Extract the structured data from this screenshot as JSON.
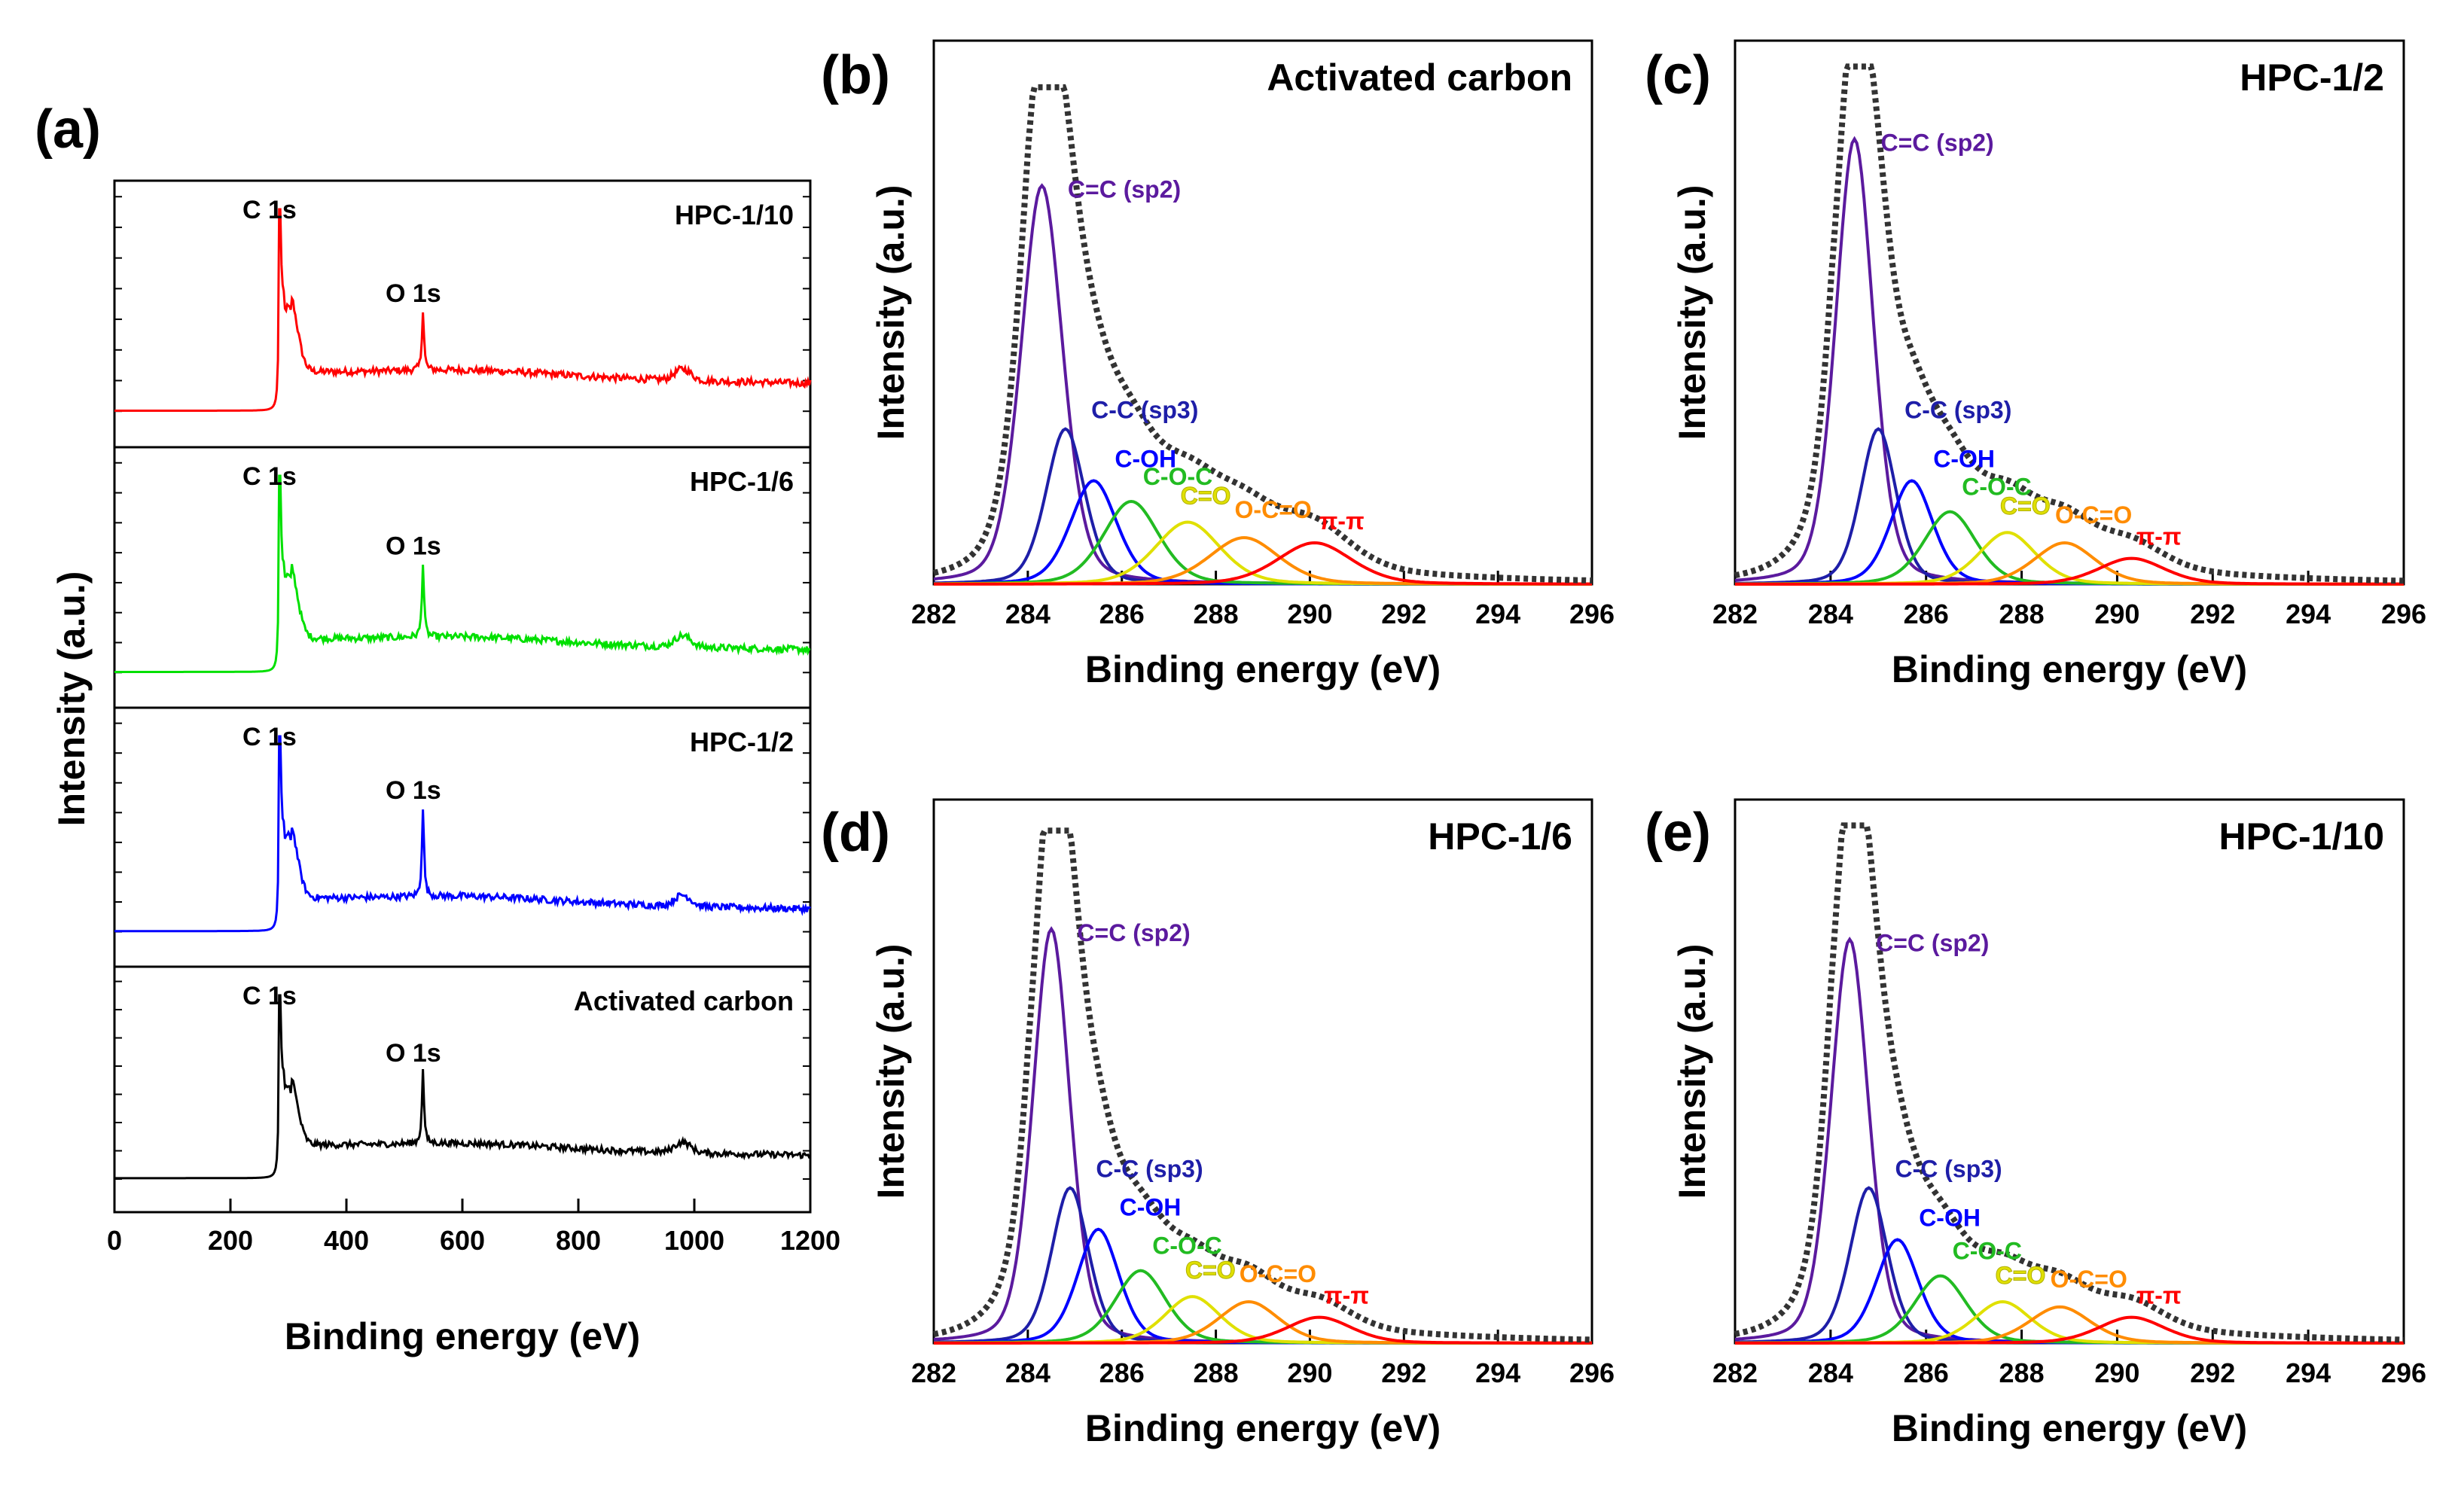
{
  "figure": {
    "panel_labels": [
      "(a)",
      "(b)",
      "(c)",
      "(d)",
      "(e)"
    ]
  },
  "chart_data": [
    {
      "panel": "(a)",
      "type": "line",
      "xlabel": "Binding energy (eV)",
      "ylabel": "Intensity (a.u.)",
      "xlim": [
        0,
        1200
      ],
      "x_ticks": [
        "0",
        "200",
        "400",
        "600",
        "800",
        "1000",
        "1200"
      ],
      "peak_labels": {
        "c1s": "C 1s",
        "o1s": "O 1s"
      },
      "series": [
        {
          "name": "HPC-1/10",
          "color": "#ff0000",
          "c1s_peak": 285,
          "o1s_peak": 532,
          "c1s_height": 1.0,
          "o1s_height": 0.26,
          "baseline": 0.12,
          "plateau": 0.29
        },
        {
          "name": "HPC-1/6",
          "color": "#00e000",
          "c1s_peak": 285,
          "o1s_peak": 532,
          "c1s_height": 1.0,
          "o1s_height": 0.33,
          "baseline": 0.12,
          "plateau": 0.27
        },
        {
          "name": "HPC-1/2",
          "color": "#0000ff",
          "c1s_peak": 285,
          "o1s_peak": 532,
          "c1s_height": 1.0,
          "o1s_height": 0.4,
          "baseline": 0.12,
          "plateau": 0.27
        },
        {
          "name": "Activated carbon",
          "color": "#000000",
          "c1s_peak": 285,
          "o1s_peak": 532,
          "c1s_height": 1.0,
          "o1s_height": 0.35,
          "baseline": 0.12,
          "plateau": 0.28
        }
      ]
    },
    {
      "panel": "(b)",
      "title": "Activated carbon",
      "type": "line",
      "xlabel": "Binding energy (eV)",
      "ylabel": "Intensity (a.u.)",
      "xlim": [
        282,
        296
      ],
      "ylim": [
        0,
        1.05
      ],
      "x_ticks": [
        "282",
        "284",
        "286",
        "288",
        "290",
        "292",
        "294",
        "296"
      ],
      "envelope_peak": 284.5,
      "envelope_height": 0.96,
      "components": [
        {
          "name": "C=C (sp2)",
          "color": "#5b1a9e",
          "center": 284.3,
          "height": 0.77,
          "width": 0.45
        },
        {
          "name": "C-C (sp3)",
          "color": "#1e1ea8",
          "center": 284.8,
          "height": 0.3,
          "width": 0.42
        },
        {
          "name": "C-OH",
          "color": "#0000ff",
          "center": 285.4,
          "height": 0.2,
          "width": 0.5
        },
        {
          "name": "C-O-C",
          "color": "#22bb22",
          "center": 286.2,
          "height": 0.16,
          "width": 0.6
        },
        {
          "name": "C=O",
          "color": "#e0e000",
          "center": 287.4,
          "height": 0.12,
          "width": 0.7
        },
        {
          "name": "O-C=O",
          "color": "#ff8c00",
          "center": 288.6,
          "height": 0.09,
          "width": 0.75
        },
        {
          "name": "π-π",
          "color": "#ff0000",
          "center": 290.1,
          "height": 0.08,
          "width": 0.8
        }
      ]
    },
    {
      "panel": "(c)",
      "title": "HPC-1/2",
      "type": "line",
      "xlabel": "Binding energy (eV)",
      "ylabel": "Intensity (a.u.)",
      "xlim": [
        282,
        296
      ],
      "ylim": [
        0,
        1.05
      ],
      "x_ticks": [
        "282",
        "284",
        "286",
        "288",
        "290",
        "292",
        "294",
        "296"
      ],
      "envelope_peak": 284.6,
      "envelope_height": 1.0,
      "components": [
        {
          "name": "C=C (sp2)",
          "color": "#5b1a9e",
          "center": 284.5,
          "height": 0.86,
          "width": 0.4
        },
        {
          "name": "C-C (sp3)",
          "color": "#1e1ea8",
          "center": 285.0,
          "height": 0.3,
          "width": 0.38
        },
        {
          "name": "C-OH",
          "color": "#0000ff",
          "center": 285.7,
          "height": 0.2,
          "width": 0.45
        },
        {
          "name": "C-O-C",
          "color": "#22bb22",
          "center": 286.5,
          "height": 0.14,
          "width": 0.55
        },
        {
          "name": "C=O",
          "color": "#e0e000",
          "center": 287.7,
          "height": 0.1,
          "width": 0.6
        },
        {
          "name": "O-C=O",
          "color": "#ff8c00",
          "center": 288.9,
          "height": 0.08,
          "width": 0.65
        },
        {
          "name": "π-π",
          "color": "#ff0000",
          "center": 290.3,
          "height": 0.05,
          "width": 0.7
        }
      ]
    },
    {
      "panel": "(d)",
      "title": "HPC-1/6",
      "type": "line",
      "xlabel": "Binding energy (eV)",
      "ylabel": "Intensity (a.u.)",
      "xlim": [
        282,
        296
      ],
      "ylim": [
        0,
        1.05
      ],
      "x_ticks": [
        "282",
        "284",
        "286",
        "288",
        "290",
        "292",
        "294",
        "296"
      ],
      "envelope_peak": 284.5,
      "envelope_height": 0.99,
      "components": [
        {
          "name": "C=C (sp2)",
          "color": "#5b1a9e",
          "center": 284.5,
          "height": 0.8,
          "width": 0.4
        },
        {
          "name": "C-C (sp3)",
          "color": "#1e1ea8",
          "center": 284.9,
          "height": 0.3,
          "width": 0.4
        },
        {
          "name": "C-OH",
          "color": "#0000ff",
          "center": 285.5,
          "height": 0.22,
          "width": 0.45
        },
        {
          "name": "C-O-C",
          "color": "#22bb22",
          "center": 286.4,
          "height": 0.14,
          "width": 0.55
        },
        {
          "name": "C=O",
          "color": "#e0e000",
          "center": 287.5,
          "height": 0.09,
          "width": 0.6
        },
        {
          "name": "O-C=O",
          "color": "#ff8c00",
          "center": 288.7,
          "height": 0.08,
          "width": 0.65
        },
        {
          "name": "π-π",
          "color": "#ff0000",
          "center": 290.2,
          "height": 0.05,
          "width": 0.7
        }
      ]
    },
    {
      "panel": "(e)",
      "title": "HPC-1/10",
      "type": "line",
      "xlabel": "Binding energy (eV)",
      "ylabel": "Intensity (a.u.)",
      "xlim": [
        282,
        296
      ],
      "ylim": [
        0,
        1.05
      ],
      "x_ticks": [
        "282",
        "284",
        "286",
        "288",
        "290",
        "292",
        "294",
        "296"
      ],
      "envelope_peak": 284.5,
      "envelope_height": 1.0,
      "components": [
        {
          "name": "C=C (sp2)",
          "color": "#5b1a9e",
          "center": 284.4,
          "height": 0.78,
          "width": 0.4
        },
        {
          "name": "C-C (sp3)",
          "color": "#1e1ea8",
          "center": 284.8,
          "height": 0.3,
          "width": 0.4
        },
        {
          "name": "C-OH",
          "color": "#0000ff",
          "center": 285.4,
          "height": 0.2,
          "width": 0.45
        },
        {
          "name": "C-O-C",
          "color": "#22bb22",
          "center": 286.3,
          "height": 0.13,
          "width": 0.55
        },
        {
          "name": "C=O",
          "color": "#e0e000",
          "center": 287.6,
          "height": 0.08,
          "width": 0.6
        },
        {
          "name": "O-C=O",
          "color": "#ff8c00",
          "center": 288.8,
          "height": 0.07,
          "width": 0.65
        },
        {
          "name": "π-π",
          "color": "#ff0000",
          "center": 290.3,
          "height": 0.05,
          "width": 0.7
        }
      ]
    }
  ]
}
